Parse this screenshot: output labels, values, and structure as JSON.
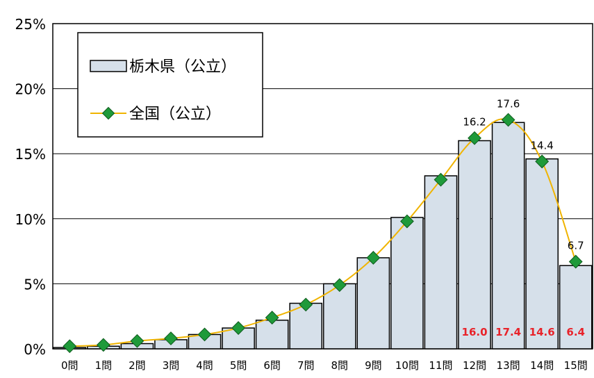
{
  "chart_data": {
    "type": "bar",
    "categories": [
      "0問",
      "1問",
      "2問",
      "3問",
      "4問",
      "5問",
      "6問",
      "7問",
      "8問",
      "9問",
      "10問",
      "11問",
      "12問",
      "13問",
      "14問",
      "15問"
    ],
    "series": [
      {
        "name": "栃木県（公立）",
        "kind": "bar",
        "values": [
          0.1,
          0.2,
          0.4,
          0.7,
          1.1,
          1.6,
          2.2,
          3.5,
          5.0,
          7.0,
          10.1,
          13.3,
          16.0,
          17.4,
          14.6,
          6.4
        ],
        "labels": {
          "12": "16.0",
          "13": "17.4",
          "14": "14.6",
          "15": "6.4"
        }
      },
      {
        "name": "全国（公立）",
        "kind": "line",
        "values": [
          0.2,
          0.3,
          0.6,
          0.8,
          1.1,
          1.6,
          2.4,
          3.4,
          4.9,
          7.0,
          9.8,
          13.0,
          16.2,
          17.6,
          14.4,
          6.7
        ],
        "labels": {
          "12": "16.2",
          "13": "17.6",
          "14": "14.4",
          "15": "6.7"
        }
      }
    ],
    "yticks": [
      "0%",
      "5%",
      "10%",
      "15%",
      "20%",
      "25%"
    ],
    "ylim": [
      0,
      25
    ],
    "grid": true,
    "legend_position": "top-left",
    "colors": {
      "bar_fill": "#d6e0ea",
      "bar_stroke": "#000000",
      "line": "#f0b400",
      "marker": "#1f9a3a",
      "marker_stroke": "#0d5a1c",
      "bar_label": "#e8232a"
    }
  }
}
